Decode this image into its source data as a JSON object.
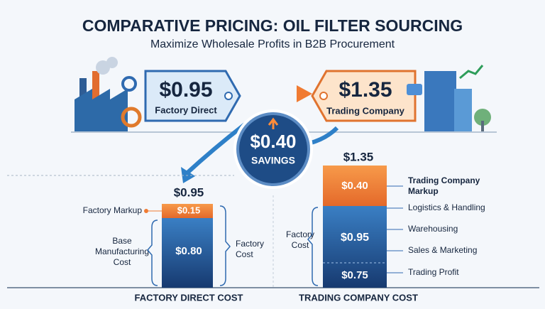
{
  "header": {
    "title": "COMPARATIVE PRICING: OIL FILTER SOURCING",
    "subtitle": "Maximize Wholesale Profits in B2B Procurement"
  },
  "tags": {
    "factory": {
      "price": "$0.95",
      "label": "Factory Direct"
    },
    "trading": {
      "price": "$1.35",
      "label": "Trading Company"
    }
  },
  "savings": {
    "amount": "$0.40",
    "label": "SAVINGS"
  },
  "factory_stack": {
    "total": "$0.95",
    "markup": "$0.15",
    "base": "$0.80",
    "markup_label": "Factory Markup",
    "base_label": [
      "Base",
      "Manufacturing",
      "Cost"
    ],
    "bracket_label": [
      "Factory",
      "Cost"
    ],
    "caption": "FACTORY DIRECT COST"
  },
  "trading_stack": {
    "total": "$1.35",
    "markup": "$0.40",
    "factory": "$0.95",
    "profit": "$0.75",
    "markup_label": [
      "Trading Company",
      "Markup"
    ],
    "items": [
      "Logistics & Handling",
      "Warehousing",
      "Sales & Marketing",
      "Trading Profit"
    ],
    "bracket_label": [
      "Factory",
      "Cost"
    ],
    "caption": "TRADING COMPANY COST"
  }
}
